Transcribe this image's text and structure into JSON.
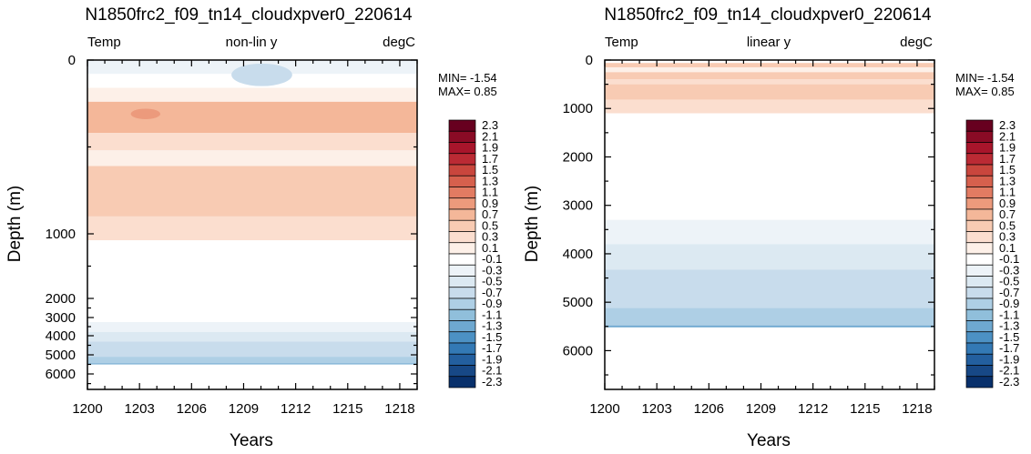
{
  "chart_data": [
    {
      "type": "heatmap",
      "panel": "left",
      "title": "N1850frc2_f09_tn14_cloudxpver0_220614",
      "subtitle_left": "Temp",
      "subtitle_center": "non-lin y",
      "subtitle_right": "degC",
      "xlabel": "Years",
      "ylabel": "Depth (m)",
      "xlim": [
        1200,
        1219
      ],
      "xticks": [
        "1200",
        "1203",
        "1206",
        "1209",
        "1212",
        "1215",
        "1218"
      ],
      "ylim": [
        0,
        6800
      ],
      "y_axis_reversed": true,
      "yticks": [
        "0",
        "1000",
        "2000",
        "3000",
        "4000",
        "5000",
        "6000"
      ],
      "min_label": "MIN= -1.54",
      "max_label": "MAX=  0.85",
      "layers": [
        {
          "top": 0,
          "bottom": 80,
          "value": -0.4
        },
        {
          "top": 80,
          "bottom": 160,
          "value": -0.15
        },
        {
          "top": 160,
          "bottom": 240,
          "value": 0.05
        },
        {
          "top": 240,
          "bottom": 420,
          "value": 0.55
        },
        {
          "top": 420,
          "bottom": 520,
          "value": 0.25
        },
        {
          "top": 520,
          "bottom": 610,
          "value": 0.05
        },
        {
          "top": 610,
          "bottom": 900,
          "value": 0.45
        },
        {
          "top": 900,
          "bottom": 1100,
          "value": 0.2
        },
        {
          "top": 1100,
          "bottom": 2450,
          "value": 0.0
        },
        {
          "top": 2450,
          "bottom": 3250,
          "value": -0.15
        },
        {
          "top": 3250,
          "bottom": 3800,
          "value": -0.4
        },
        {
          "top": 3800,
          "bottom": 4300,
          "value": -0.6
        },
        {
          "top": 4300,
          "bottom": 5100,
          "value": -0.8
        },
        {
          "top": 5100,
          "bottom": 5450,
          "value": -1.05
        },
        {
          "top": 5450,
          "bottom": 5500,
          "value": -1.3
        },
        {
          "top": 5500,
          "bottom": 6800,
          "value": 0.0
        }
      ],
      "patches": [
        {
          "x0": 1208.3,
          "x1": 1211.8,
          "top": 20,
          "bottom": 150,
          "value": -0.75
        },
        {
          "x0": 1202.5,
          "x1": 1204.2,
          "top": 280,
          "bottom": 340,
          "value": 0.75
        }
      ]
    },
    {
      "type": "heatmap",
      "panel": "right",
      "title": "N1850frc2_f09_tn14_cloudxpver0_220614",
      "subtitle_left": "Temp",
      "subtitle_center": "linear y",
      "subtitle_right": "degC",
      "xlabel": "Years",
      "ylabel": "Depth (m)",
      "xlim": [
        1200,
        1219
      ],
      "xticks": [
        "1200",
        "1203",
        "1206",
        "1209",
        "1212",
        "1215",
        "1218"
      ],
      "ylim": [
        0,
        6800
      ],
      "y_axis_reversed": true,
      "yticks": [
        "0",
        "1000",
        "2000",
        "3000",
        "4000",
        "5000",
        "6000"
      ],
      "min_label": "MIN= -1.54",
      "max_label": "MAX=  0.85",
      "layers": [
        {
          "top": 0,
          "bottom": 60,
          "value": -0.25
        },
        {
          "top": 60,
          "bottom": 150,
          "value": 0.4
        },
        {
          "top": 150,
          "bottom": 250,
          "value": 0.05
        },
        {
          "top": 250,
          "bottom": 400,
          "value": 0.45
        },
        {
          "top": 400,
          "bottom": 500,
          "value": 0.25
        },
        {
          "top": 500,
          "bottom": 820,
          "value": 0.45
        },
        {
          "top": 820,
          "bottom": 1100,
          "value": 0.2
        },
        {
          "top": 1100,
          "bottom": 2450,
          "value": 0.0
        },
        {
          "top": 2450,
          "bottom": 3300,
          "value": -0.15
        },
        {
          "top": 3300,
          "bottom": 3800,
          "value": -0.4
        },
        {
          "top": 3800,
          "bottom": 4330,
          "value": -0.6
        },
        {
          "top": 4330,
          "bottom": 5120,
          "value": -0.8
        },
        {
          "top": 5120,
          "bottom": 5480,
          "value": -1.05
        },
        {
          "top": 5480,
          "bottom": 5520,
          "value": -1.3
        },
        {
          "top": 5520,
          "bottom": 6800,
          "value": 0.0
        }
      ],
      "patches": []
    }
  ],
  "colorbar": {
    "labels": [
      "2.3",
      "2.1",
      "1.9",
      "1.7",
      "1.5",
      "1.3",
      "1.1",
      "0.9",
      "0.7",
      "0.5",
      "0.3",
      "0.1",
      "-0.1",
      "-0.3",
      "-0.5",
      "-0.7",
      "-0.9",
      "-1.1",
      "-1.3",
      "-1.5",
      "-1.7",
      "-1.9",
      "-2.1",
      "-2.3"
    ],
    "colors": [
      "#67001f",
      "#8a0b25",
      "#a8152b",
      "#bb2a34",
      "#c9463d",
      "#d6604d",
      "#e27b62",
      "#ec9a7c",
      "#f4b799",
      "#f8cbb3",
      "#fbdecf",
      "#fdf0e8",
      "#ffffff",
      "#edf3f8",
      "#dce9f2",
      "#c8dcec",
      "#aecfe5",
      "#90bfdb",
      "#6ea8d0",
      "#4c91c4",
      "#3379b5",
      "#235f9f",
      "#174886",
      "#08306b"
    ]
  }
}
